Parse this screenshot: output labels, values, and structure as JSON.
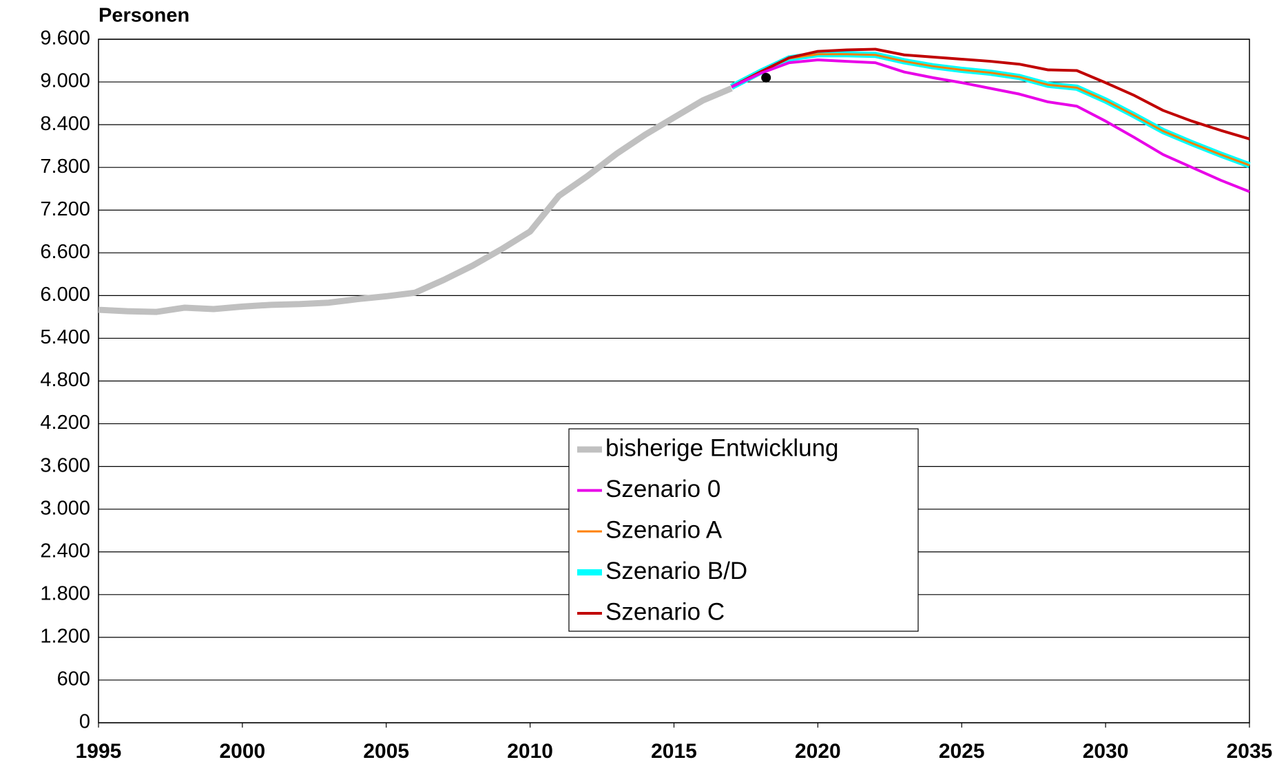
{
  "chart_data": {
    "type": "line",
    "y_label": "Personen",
    "xlim": [
      1995,
      2035
    ],
    "xticks": [
      1995,
      2000,
      2005,
      2010,
      2015,
      2020,
      2025,
      2030,
      2035
    ],
    "ylim": [
      0,
      9600
    ],
    "yticks": [
      0,
      600,
      {
        "value": 1200,
        "label": "1.200"
      },
      {
        "value": 1800,
        "label": "1.800"
      },
      {
        "value": 2400,
        "label": "2.400"
      },
      {
        "value": 3000,
        "label": "3.000"
      },
      {
        "value": 3600,
        "label": "3.600"
      },
      {
        "value": 4200,
        "label": "4.200"
      },
      {
        "value": 4800,
        "label": "4.800"
      },
      {
        "value": 5400,
        "label": "5.400"
      },
      {
        "value": 6000,
        "label": "6.000"
      },
      {
        "value": 6600,
        "label": "6.600"
      },
      {
        "value": 7200,
        "label": "7.200"
      },
      {
        "value": 7800,
        "label": "7.800"
      },
      {
        "value": 8400,
        "label": "8.400"
      },
      {
        "value": 9000,
        "label": "9.000"
      },
      {
        "value": 9600,
        "label": "9.600"
      }
    ],
    "grid": true,
    "series": [
      {
        "name": "bisherige Entwicklung",
        "color": "#c0c0c0",
        "x": [
          1995,
          1996,
          1997,
          1998,
          1999,
          2000,
          2001,
          2002,
          2003,
          2004,
          2005,
          2006,
          2007,
          2008,
          2009,
          2010,
          2011,
          2012,
          2013,
          2014,
          2015,
          2016,
          2017
        ],
        "values": [
          5800,
          5780,
          5770,
          5830,
          5810,
          5845,
          5870,
          5880,
          5900,
          5950,
          5990,
          6040,
          6220,
          6420,
          6650,
          6900,
          7400,
          7680,
          7990,
          8260,
          8500,
          8740,
          8910
        ]
      },
      {
        "name": "Szenario 0",
        "color": "#e800e8",
        "x": [
          2017,
          2018,
          2019,
          2020,
          2021,
          2022,
          2023,
          2024,
          2025,
          2026,
          2027,
          2028,
          2029,
          2030,
          2031,
          2032,
          2033,
          2034,
          2035
        ],
        "values": [
          8930,
          9120,
          9270,
          9310,
          9290,
          9270,
          9140,
          9060,
          8990,
          8910,
          8830,
          8720,
          8660,
          8450,
          8220,
          7980,
          7800,
          7620,
          7460
        ]
      },
      {
        "name": "Szenario A",
        "color": "#ff8000",
        "x": [
          2017,
          2018,
          2019,
          2020,
          2021,
          2022,
          2023,
          2024,
          2025,
          2026,
          2027,
          2028,
          2029,
          2030,
          2031,
          2032,
          2033,
          2034,
          2035
        ],
        "values": [
          8930,
          9140,
          9330,
          9390,
          9390,
          9380,
          9290,
          9220,
          9170,
          9130,
          9070,
          8960,
          8920,
          8740,
          8530,
          8310,
          8140,
          7980,
          7830
        ]
      },
      {
        "name": "Szenario B/D",
        "color": "#00ffff",
        "x": [
          2017,
          2018,
          2019,
          2020,
          2021,
          2022,
          2023,
          2024,
          2025,
          2026,
          2027,
          2028,
          2029,
          2030,
          2031,
          2032,
          2033,
          2034,
          2035
        ],
        "values": [
          8930,
          9140,
          9330,
          9390,
          9390,
          9380,
          9290,
          9220,
          9170,
          9130,
          9070,
          8960,
          8920,
          8740,
          8530,
          8310,
          8140,
          7980,
          7830
        ]
      },
      {
        "name": "Szenario C",
        "color": "#c00000",
        "x": [
          2017,
          2018,
          2019,
          2020,
          2021,
          2022,
          2023,
          2024,
          2025,
          2026,
          2027,
          2028,
          2029,
          2030,
          2031,
          2032,
          2033,
          2034,
          2035
        ],
        "values": [
          8930,
          9140,
          9340,
          9430,
          9450,
          9460,
          9380,
          9350,
          9320,
          9290,
          9250,
          9170,
          9160,
          8990,
          8810,
          8600,
          8450,
          8320,
          8200
        ]
      }
    ],
    "highlight_point": {
      "x": 2018.2,
      "y": 9060,
      "color": "#000000"
    }
  }
}
